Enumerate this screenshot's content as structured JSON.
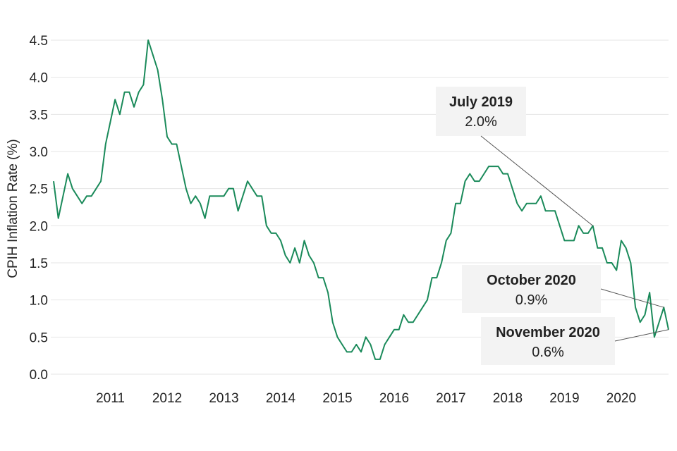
{
  "chart_data": {
    "type": "line",
    "ylabel": "CPIH Inflation Rate (%)",
    "xlabel": "",
    "ylim": [
      0,
      4.5
    ],
    "yticks": [
      0.0,
      0.5,
      1.0,
      1.5,
      2.0,
      2.5,
      3.0,
      3.5,
      4.0,
      4.5
    ],
    "ytick_labels": [
      "0.0",
      "0.5",
      "1.0",
      "1.5",
      "2.0",
      "2.5",
      "3.0",
      "3.5",
      "4.0",
      "4.5"
    ],
    "xtick_labels": [
      "2011",
      "2012",
      "2013",
      "2014",
      "2015",
      "2016",
      "2017",
      "2018",
      "2019",
      "2020"
    ],
    "grid": true,
    "line_color": "#1a8a5a",
    "start": "2010-01",
    "series": [
      {
        "values": [
          2.6,
          2.1,
          2.4,
          2.7,
          2.5,
          2.4,
          2.3,
          2.4,
          2.4,
          2.5,
          2.6,
          3.1,
          3.4,
          3.7,
          3.5,
          3.8,
          3.8,
          3.6,
          3.8,
          3.9,
          4.5,
          4.3,
          4.1,
          3.7,
          3.2,
          3.1,
          3.1,
          2.8,
          2.5,
          2.3,
          2.4,
          2.3,
          2.1,
          2.4,
          2.4,
          2.4,
          2.4,
          2.5,
          2.5,
          2.2,
          2.4,
          2.6,
          2.5,
          2.4,
          2.4,
          2.0,
          1.9,
          1.9,
          1.8,
          1.6,
          1.5,
          1.7,
          1.5,
          1.8,
          1.6,
          1.5,
          1.3,
          1.3,
          1.1,
          0.7,
          0.5,
          0.4,
          0.3,
          0.3,
          0.4,
          0.3,
          0.5,
          0.4,
          0.2,
          0.2,
          0.4,
          0.5,
          0.6,
          0.6,
          0.8,
          0.7,
          0.7,
          0.8,
          0.9,
          1.0,
          1.3,
          1.3,
          1.5,
          1.8,
          1.9,
          2.3,
          2.3,
          2.6,
          2.7,
          2.6,
          2.6,
          2.7,
          2.8,
          2.8,
          2.8,
          2.7,
          2.7,
          2.5,
          2.3,
          2.2,
          2.3,
          2.3,
          2.3,
          2.4,
          2.2,
          2.2,
          2.2,
          2.0,
          1.8,
          1.8,
          1.8,
          2.0,
          1.9,
          1.9,
          2.0,
          1.7,
          1.7,
          1.5,
          1.5,
          1.4,
          1.8,
          1.7,
          1.5,
          0.9,
          0.7,
          0.8,
          1.1,
          0.5,
          0.7,
          0.9,
          0.6
        ]
      }
    ],
    "annotations": [
      {
        "title": "July 2019",
        "value": "2.0%",
        "date": "2019-07",
        "y": 2.0
      },
      {
        "title": "October 2020",
        "value": "0.9%",
        "date": "2020-10",
        "y": 0.9
      },
      {
        "title": "November 2020",
        "value": "0.6%",
        "date": "2020-11",
        "y": 0.6
      }
    ]
  }
}
